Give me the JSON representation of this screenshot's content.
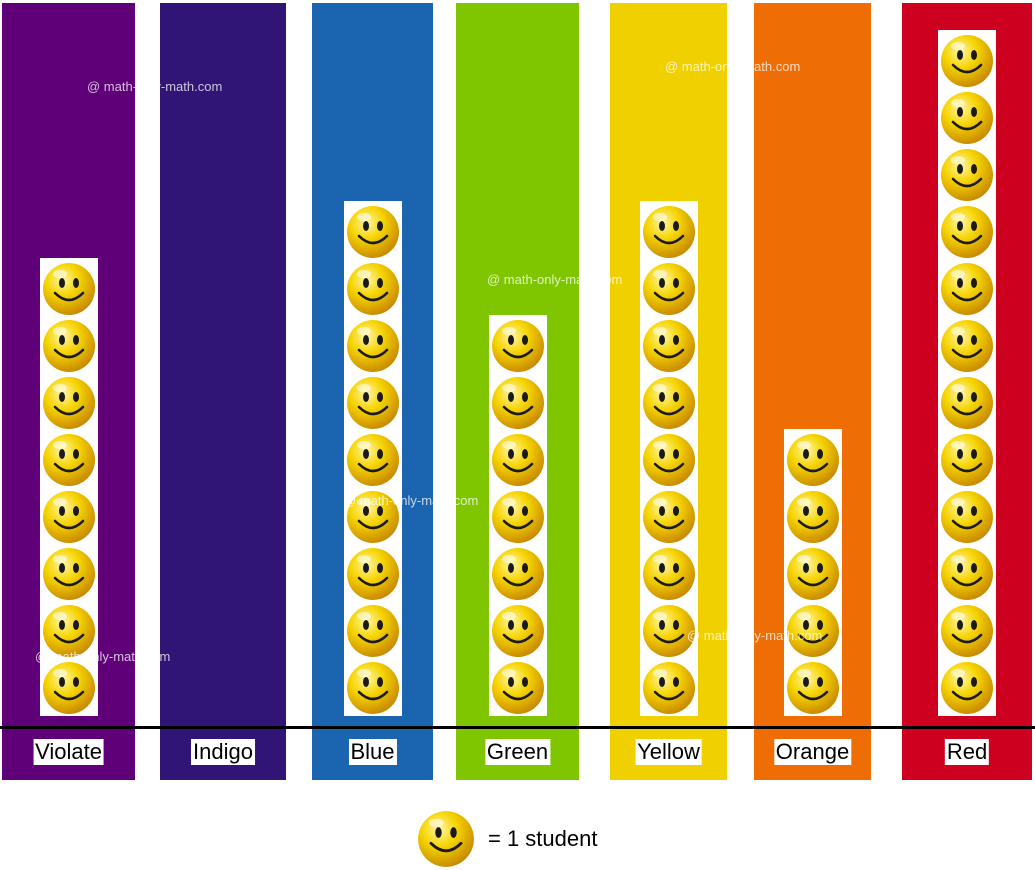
{
  "chart_data": {
    "type": "pictograph",
    "categories": [
      "Violate",
      "Indigo",
      "Blue",
      "Green",
      "Yellow",
      "Orange",
      "Red"
    ],
    "values": [
      8,
      0,
      9,
      7,
      9,
      5,
      12
    ],
    "colors": [
      "#5f0079",
      "#301577",
      "#1b64b0",
      "#7fc600",
      "#f1d000",
      "#ef6d05",
      "#cd011f"
    ],
    "icon": "smiley-icon",
    "legend": {
      "icon": "smiley-icon",
      "text": "= 1 student"
    }
  },
  "watermarks": [
    "@ math-only-math.com",
    "@ math-only-math.com",
    "@ math-only-math.com",
    "@ math-only-math.com",
    "@ math-only-math.com",
    "@ math-only-math.com"
  ]
}
